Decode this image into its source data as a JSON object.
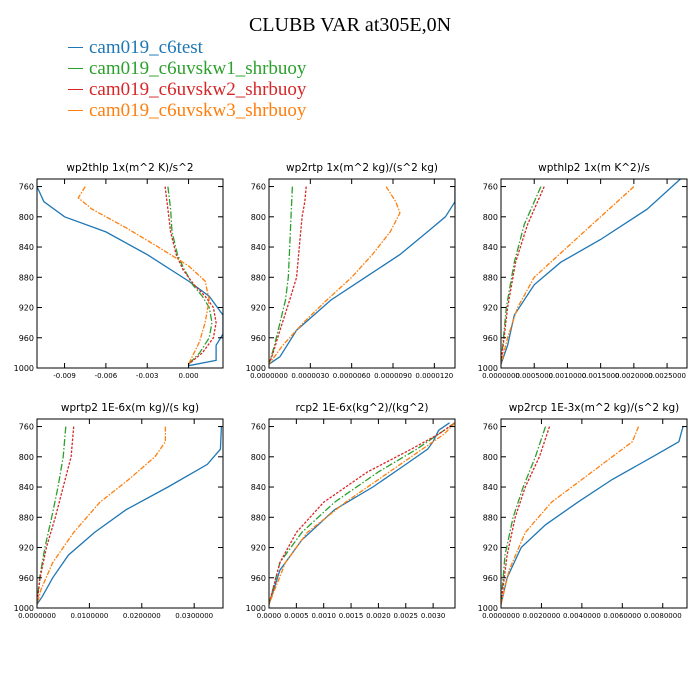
{
  "figure": {
    "title": "CLUBB VAR at305E,0N"
  },
  "legend": [
    {
      "name": "cam019_c6test",
      "color": "#1f77b4"
    },
    {
      "name": "cam019_c6uvskw1_shrbuoy",
      "color": "#2ca02c"
    },
    {
      "name": "cam019_c6uvskw2_shrbuoy",
      "color": "#d62728"
    },
    {
      "name": "cam019_c6uvskw3_shrbuoy",
      "color": "#ff7f0e"
    }
  ],
  "chart_data": [
    {
      "type": "line",
      "title": "wp2thlp   1x(m^2 K)/s^2",
      "ylim": [
        1000,
        750
      ],
      "yticks": [
        760,
        800,
        840,
        880,
        920,
        960,
        1000
      ],
      "ytick_labels": [
        "760",
        "800",
        "840",
        "880",
        "920",
        "960",
        "1000"
      ],
      "xlim": [
        -0.011,
        0.0025
      ],
      "xticks": [
        -0.009,
        -0.006,
        -0.003,
        0.0
      ],
      "xtick_labels": [
        "-0.009",
        "-0.006",
        "-0.003",
        "0.000"
      ],
      "series": [
        {
          "name": "cam019_c6test",
          "x": [
            -0.011,
            -0.0105,
            -0.009,
            -0.006,
            -0.003,
            0.0,
            0.0015,
            0.0025,
            0.0025,
            0.002,
            0.002,
            0.0
          ],
          "y": [
            760,
            780,
            800,
            820,
            850,
            885,
            905,
            930,
            955,
            970,
            990,
            997
          ]
        },
        {
          "name": "cam019_c6uvskw1_shrbuoy",
          "x": [
            -0.0015,
            -0.0013,
            -0.0012,
            -0.0008,
            -0.0003,
            0.0003,
            0.001,
            0.0015,
            0.0017,
            0.0015,
            0.0008,
            0.0
          ],
          "y": [
            760,
            790,
            820,
            850,
            870,
            890,
            905,
            920,
            940,
            960,
            980,
            995
          ]
        },
        {
          "name": "cam019_c6uvskw2_shrbuoy",
          "x": [
            -0.0017,
            -0.0015,
            -0.0013,
            -0.0009,
            -0.0004,
            0.0004,
            0.0012,
            0.0018,
            0.002,
            0.0018,
            0.001,
            0.0
          ],
          "y": [
            760,
            790,
            820,
            850,
            870,
            890,
            905,
            920,
            940,
            960,
            980,
            995
          ]
        },
        {
          "name": "cam019_c6uvskw3_shrbuoy",
          "x": [
            -0.0075,
            -0.008,
            -0.007,
            -0.0045,
            -0.0022,
            0.0,
            0.0012,
            0.0015,
            0.0012,
            0.0008,
            0.0
          ],
          "y": [
            760,
            775,
            790,
            815,
            840,
            865,
            885,
            910,
            940,
            965,
            995
          ]
        }
      ]
    },
    {
      "type": "line",
      "title": "wp2rtp   1x(m^2 kg)/(s^2 kg)",
      "ylim": [
        1000,
        750
      ],
      "yticks": [
        760,
        800,
        840,
        880,
        920,
        960,
        1000
      ],
      "ytick_labels": [
        "760",
        "800",
        "840",
        "880",
        "920",
        "960",
        "1000"
      ],
      "xlim": [
        0,
        1.35e-05
      ],
      "xticks": [
        0,
        3e-06,
        6e-06,
        9e-06,
        1.2e-05
      ],
      "xtick_labels": [
        "0.0000000",
        "0.0000030",
        "0.0000060",
        "0.0000090",
        "0.0000120"
      ],
      "series": [
        {
          "name": "cam019_c6test",
          "x": [
            1.35e-05,
            1.35e-05,
            1.28e-05,
            1.15e-05,
            9.5e-06,
            7e-06,
            4.5e-06,
            2e-06,
            8e-07,
            0.0
          ],
          "y": [
            760,
            780,
            800,
            820,
            850,
            880,
            910,
            950,
            985,
            995
          ]
        },
        {
          "name": "cam019_c6uvskw1_shrbuoy",
          "x": [
            1.7e-06,
            1.6e-06,
            1.5e-06,
            1.4e-06,
            1.2e-06,
            8e-07,
            4e-07,
            0.0
          ],
          "y": [
            760,
            800,
            840,
            880,
            910,
            940,
            970,
            995
          ]
        },
        {
          "name": "cam019_c6uvskw2_shrbuoy",
          "x": [
            2.7e-06,
            2.6e-06,
            2.4e-06,
            2.2e-06,
            2e-06,
            1.5e-06,
            8e-07,
            3e-07,
            0.0
          ],
          "y": [
            760,
            780,
            800,
            840,
            880,
            910,
            950,
            980,
            995
          ]
        },
        {
          "name": "cam019_c6uvskw3_shrbuoy",
          "x": [
            8.5e-06,
            9.2e-06,
            9.5e-06,
            8.8e-06,
            7.5e-06,
            6e-06,
            4.2e-06,
            2.5e-06,
            1e-06,
            0.0
          ],
          "y": [
            760,
            780,
            795,
            820,
            850,
            880,
            910,
            940,
            970,
            995
          ]
        }
      ]
    },
    {
      "type": "line",
      "title": "wpthlp2   1x(m K^2)/s",
      "ylim": [
        1000,
        750
      ],
      "yticks": [
        760,
        800,
        840,
        880,
        920,
        960,
        1000
      ],
      "ytick_labels": [
        "760",
        "800",
        "840",
        "880",
        "920",
        "960",
        "1000"
      ],
      "xlim": [
        0,
        0.0028
      ],
      "xticks": [
        0,
        0.0005,
        0.001,
        0.0015,
        0.002,
        0.0025
      ],
      "xtick_labels": [
        "0.0000000",
        "0.0005000",
        "0.0010000",
        "0.0015000",
        "0.0020000",
        "0.0025000"
      ],
      "series": [
        {
          "name": "cam019_c6test",
          "x": [
            0.0027,
            0.0022,
            0.0015,
            0.0009,
            0.0005,
            0.0002,
            0.0001,
            0.0
          ],
          "y": [
            750,
            790,
            830,
            860,
            890,
            930,
            970,
            995
          ]
        },
        {
          "name": "cam019_c6uvskw1_shrbuoy",
          "x": [
            0.0006,
            0.00035,
            0.0002,
            8e-05,
            0.0
          ],
          "y": [
            760,
            810,
            860,
            920,
            995
          ]
        },
        {
          "name": "cam019_c6uvskw2_shrbuoy",
          "x": [
            0.00065,
            0.0004,
            0.00022,
            0.0001,
            0.0
          ],
          "y": [
            760,
            810,
            860,
            920,
            995
          ]
        },
        {
          "name": "cam019_c6uvskw3_shrbuoy",
          "x": [
            0.002,
            0.0015,
            0.001,
            0.0005,
            0.00025,
            0.0001,
            0.0
          ],
          "y": [
            760,
            800,
            840,
            880,
            920,
            960,
            995
          ]
        }
      ]
    },
    {
      "type": "line",
      "title": "wprtp2   1E-6x(m kg)/(s kg)",
      "ylim": [
        1000,
        750
      ],
      "yticks": [
        760,
        800,
        840,
        880,
        920,
        960,
        1000
      ],
      "ytick_labels": [
        "760",
        "800",
        "840",
        "880",
        "920",
        "960",
        "1000"
      ],
      "xlim": [
        0,
        0.0355
      ],
      "xticks": [
        0,
        0.01,
        0.02,
        0.03
      ],
      "xtick_labels": [
        "0.0000000",
        "0.0100000",
        "0.0200000",
        "0.0300000"
      ],
      "series": [
        {
          "name": "cam019_c6test",
          "x": [
            0.0352,
            0.035,
            0.0325,
            0.025,
            0.017,
            0.011,
            0.006,
            0.003,
            0.001,
            0.0
          ],
          "y": [
            760,
            790,
            810,
            840,
            870,
            900,
            930,
            960,
            985,
            995
          ]
        },
        {
          "name": "cam019_c6uvskw1_shrbuoy",
          "x": [
            0.0055,
            0.005,
            0.004,
            0.0028,
            0.0015,
            0.0005,
            0.0
          ],
          "y": [
            760,
            800,
            840,
            880,
            920,
            960,
            995
          ]
        },
        {
          "name": "cam019_c6uvskw2_shrbuoy",
          "x": [
            0.007,
            0.0065,
            0.005,
            0.0035,
            0.0018,
            0.0006,
            0.0
          ],
          "y": [
            760,
            800,
            840,
            880,
            920,
            960,
            995
          ]
        },
        {
          "name": "cam019_c6uvskw3_shrbuoy",
          "x": [
            0.0245,
            0.0245,
            0.0225,
            0.0175,
            0.012,
            0.007,
            0.003,
            0.0008,
            0.0
          ],
          "y": [
            760,
            780,
            800,
            830,
            860,
            900,
            940,
            975,
            995
          ]
        }
      ]
    },
    {
      "type": "line",
      "title": "rcp2   1E-6x(kg^2)/(kg^2)",
      "ylim": [
        1000,
        750
      ],
      "yticks": [
        760,
        800,
        840,
        880,
        920,
        960,
        1000
      ],
      "ytick_labels": [
        "760",
        "800",
        "840",
        "880",
        "920",
        "960",
        "1000"
      ],
      "xlim": [
        0,
        0.0034
      ],
      "xticks": [
        0,
        0.0005,
        0.001,
        0.0015,
        0.002,
        0.0025,
        0.003
      ],
      "xtick_labels": [
        "0.0000",
        "0.0005",
        "0.0010",
        "0.0015",
        "0.0020",
        "0.0025",
        "0.0030"
      ],
      "series": [
        {
          "name": "cam019_c6test",
          "x": [
            0.0033,
            0.0031,
            0.003,
            0.0029,
            0.0025,
            0.0019,
            0.0012,
            0.0006,
            0.0002,
            0.0
          ],
          "y": [
            755,
            765,
            780,
            790,
            810,
            840,
            870,
            910,
            950,
            995
          ]
        },
        {
          "name": "cam019_c6uvskw1_shrbuoy",
          "x": [
            0.0034,
            0.0031,
            0.0027,
            0.002,
            0.0012,
            0.0006,
            0.0002,
            0.0
          ],
          "y": [
            755,
            770,
            790,
            820,
            860,
            900,
            940,
            995
          ]
        },
        {
          "name": "cam019_c6uvskw2_shrbuoy",
          "x": [
            0.0034,
            0.0031,
            0.0026,
            0.0018,
            0.001,
            0.0005,
            0.0002,
            0.0
          ],
          "y": [
            755,
            770,
            790,
            820,
            860,
            900,
            940,
            995
          ]
        },
        {
          "name": "cam019_c6uvskw3_shrbuoy",
          "x": [
            0.0034,
            0.0032,
            0.0028,
            0.0022,
            0.0014,
            0.0007,
            0.0003,
            0.0
          ],
          "y": [
            755,
            770,
            790,
            820,
            860,
            900,
            940,
            995
          ]
        }
      ]
    },
    {
      "type": "line",
      "title": "wp2rcp   1E-3x(m^2 kg)/(s^2 kg)",
      "ylim": [
        1000,
        750
      ],
      "yticks": [
        760,
        800,
        840,
        880,
        920,
        960,
        1000
      ],
      "ytick_labels": [
        "760",
        "800",
        "840",
        "880",
        "920",
        "960",
        "1000"
      ],
      "xlim": [
        0,
        0.0092
      ],
      "xticks": [
        0,
        0.002,
        0.004,
        0.006,
        0.008
      ],
      "xtick_labels": [
        "0.0000000",
        "0.0020000",
        "0.0040000",
        "0.0060000",
        "0.0080000"
      ],
      "series": [
        {
          "name": "cam019_c6test",
          "x": [
            0.009,
            0.0088,
            0.0075,
            0.0055,
            0.0038,
            0.0022,
            0.001,
            0.0003,
            0.0
          ],
          "y": [
            760,
            780,
            800,
            830,
            860,
            890,
            920,
            960,
            995
          ]
        },
        {
          "name": "cam019_c6uvskw1_shrbuoy",
          "x": [
            0.0022,
            0.0017,
            0.0011,
            0.0006,
            0.0002,
            0.0
          ],
          "y": [
            760,
            800,
            840,
            880,
            930,
            995
          ]
        },
        {
          "name": "cam019_c6uvskw2_shrbuoy",
          "x": [
            0.0024,
            0.0019,
            0.0012,
            0.0007,
            0.0003,
            0.0
          ],
          "y": [
            760,
            800,
            840,
            880,
            930,
            995
          ]
        },
        {
          "name": "cam019_c6uvskw3_shrbuoy",
          "x": [
            0.0068,
            0.0065,
            0.0055,
            0.004,
            0.0025,
            0.0012,
            0.0004,
            0.0
          ],
          "y": [
            760,
            780,
            800,
            830,
            860,
            900,
            950,
            995
          ]
        }
      ]
    }
  ]
}
